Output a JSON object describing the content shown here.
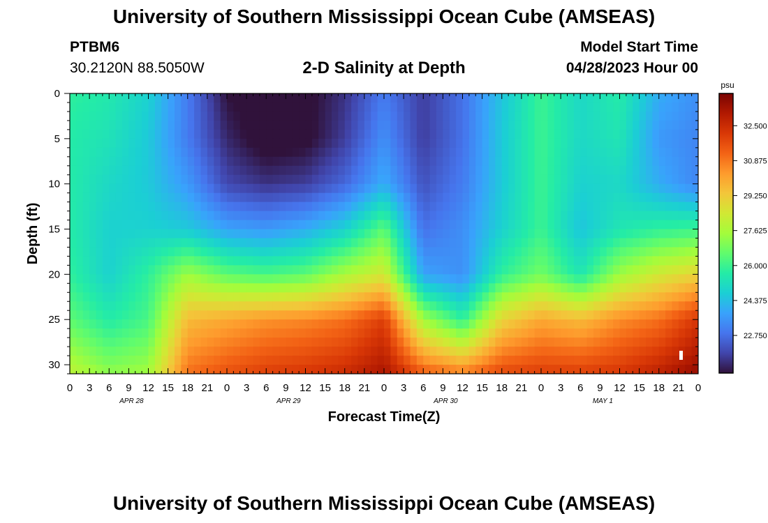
{
  "header": {
    "title": "University of Southern Mississippi Ocean Cube (AMSEAS)",
    "station_id": "PTBM6",
    "station_coords": "30.2120N  88.5050W",
    "subtitle": "2-D Salinity at Depth",
    "start_label": "Model Start Time",
    "start_value": "04/28/2023 Hour 00"
  },
  "footer": {
    "title": "University of Southern Mississippi Ocean Cube (AMSEAS)"
  },
  "chart_data": {
    "type": "heatmap",
    "title": "2-D Salinity at Depth",
    "xlabel": "Forecast Time(Z)",
    "ylabel": "Depth (ft)",
    "x_ticks": [
      "0",
      "3",
      "6",
      "9",
      "12",
      "15",
      "18",
      "21",
      "0",
      "3",
      "6",
      "9",
      "12",
      "15",
      "18",
      "21",
      "0",
      "3",
      "6",
      "9",
      "12",
      "15",
      "18",
      "21",
      "0",
      "3",
      "6",
      "9",
      "12",
      "15",
      "18",
      "21",
      "0"
    ],
    "date_labels": [
      {
        "label": "APR 28",
        "hour": 9
      },
      {
        "label": "APR 29",
        "hour": 33
      },
      {
        "label": "APR 30",
        "hour": 57
      },
      {
        "label": "MAY 1",
        "hour": 81
      }
    ],
    "x_range_hours": [
      0,
      96
    ],
    "y_range_ft": [
      0,
      31
    ],
    "y_ticks": [
      "0",
      "5",
      "10",
      "15",
      "20",
      "25",
      "30"
    ],
    "colorbar": {
      "unit": "psu",
      "range": [
        21.0,
        34.0
      ],
      "ticks": [
        "32.500",
        "30.875",
        "29.250",
        "27.625",
        "26.000",
        "24.375",
        "22.750"
      ],
      "colors": [
        "#30123b",
        "#4145ab",
        "#4675ed",
        "#39a2fc",
        "#1bcfd4",
        "#24eca6",
        "#61fc6c",
        "#a4fc3b",
        "#d1e834",
        "#f3c63a",
        "#fe9b2d",
        "#f36315",
        "#d93806",
        "#b11901",
        "#7a0403"
      ]
    },
    "field": {
      "hours": [
        0,
        6,
        12,
        18,
        24,
        30,
        36,
        42,
        48,
        54,
        60,
        66,
        72,
        78,
        84,
        90,
        96
      ],
      "depths": [
        0,
        5,
        10,
        15,
        20,
        25,
        31
      ],
      "values": [
        [
          25.8,
          25.5,
          24.8,
          23.0,
          21.0,
          20.6,
          20.8,
          21.6,
          23.0,
          21.8,
          22.8,
          24.5,
          26.0,
          25.0,
          25.6,
          24.0,
          23.4
        ],
        [
          25.6,
          25.3,
          24.6,
          23.0,
          21.4,
          20.6,
          20.8,
          21.8,
          23.4,
          21.8,
          22.8,
          24.6,
          26.0,
          25.0,
          25.4,
          23.6,
          23.2
        ],
        [
          25.6,
          25.0,
          24.6,
          23.6,
          22.0,
          21.6,
          21.8,
          22.6,
          24.0,
          22.2,
          23.0,
          24.6,
          26.0,
          24.8,
          25.0,
          24.0,
          23.2
        ],
        [
          25.6,
          24.8,
          24.8,
          24.6,
          23.8,
          23.6,
          24.0,
          24.8,
          26.5,
          22.8,
          23.4,
          24.8,
          26.0,
          24.5,
          25.4,
          25.8,
          26.0
        ],
        [
          25.8,
          24.8,
          25.8,
          27.4,
          26.5,
          26.2,
          26.5,
          27.6,
          28.4,
          23.8,
          23.4,
          25.8,
          26.8,
          25.4,
          27.4,
          28.4,
          29.0
        ],
        [
          26.5,
          25.6,
          26.2,
          29.6,
          30.0,
          30.4,
          30.6,
          31.0,
          32.0,
          27.5,
          25.8,
          29.0,
          30.0,
          29.6,
          30.5,
          31.0,
          32.2
        ],
        [
          28.0,
          27.2,
          27.5,
          31.0,
          31.6,
          32.0,
          32.2,
          32.5,
          33.2,
          31.4,
          30.8,
          31.8,
          32.0,
          32.0,
          32.2,
          32.8,
          33.6
        ]
      ]
    }
  }
}
